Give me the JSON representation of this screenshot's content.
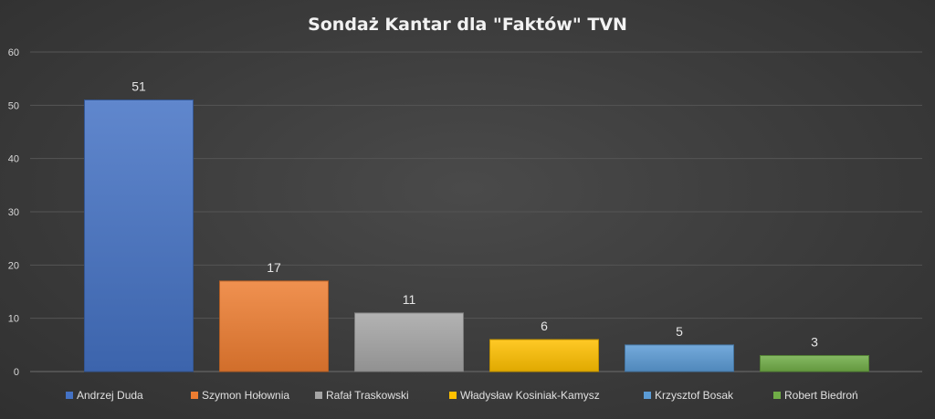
{
  "chart_data": {
    "type": "bar",
    "title": "Sondaż Kantar dla \"Faktów\" TVN",
    "categories": [
      "Andrzej Duda",
      "Szymon Hołownia",
      "Rafał Traskowski",
      "Władysław Kosiniak-Kamysz",
      "Krzysztof Bosak",
      "Robert Biedroń"
    ],
    "values": [
      51,
      17,
      11,
      6,
      5,
      3
    ],
    "colors": [
      "#4472c4",
      "#ed7d31",
      "#a5a5a5",
      "#ffc000",
      "#5b9bd5",
      "#70ad47"
    ],
    "ylim": [
      0,
      60
    ],
    "yticks": [
      0,
      10,
      20,
      30,
      40,
      50,
      60
    ],
    "grid": true,
    "legend_position": "bottom",
    "data_labels": true
  }
}
